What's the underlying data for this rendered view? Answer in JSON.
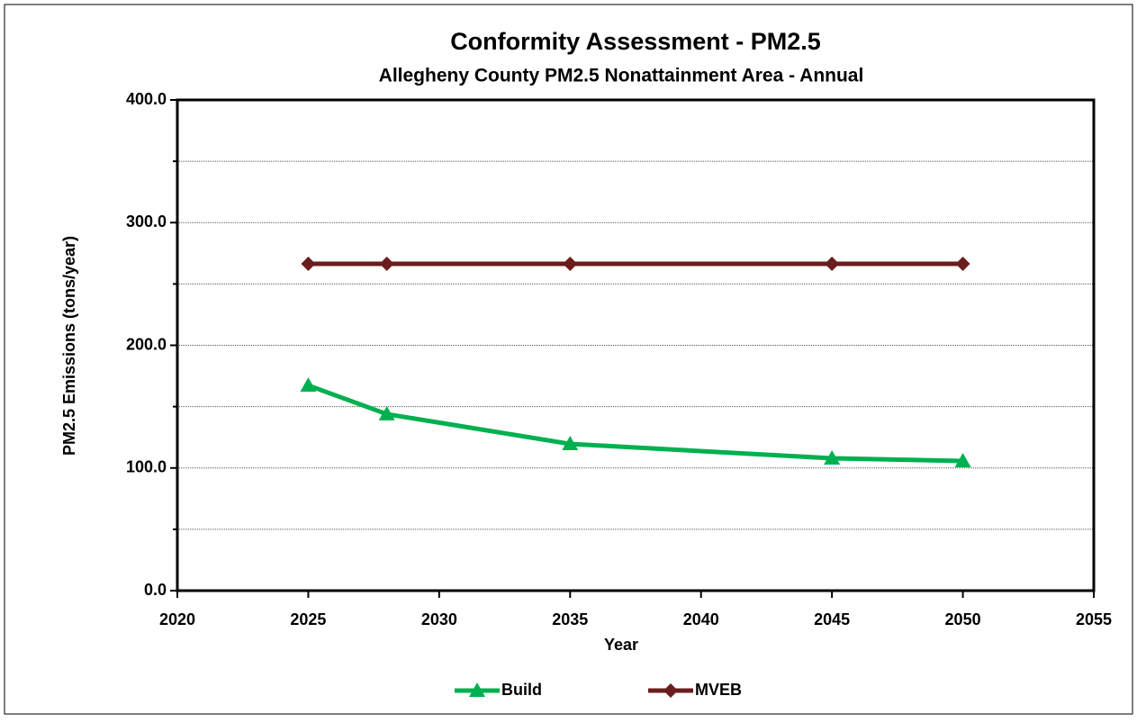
{
  "chart_data": {
    "type": "line",
    "title": "Conformity Assessment - PM2.5",
    "subtitle": "Allegheny County PM2.5 Nonattainment Area - Annual",
    "x_label": "Year",
    "y_label": "PM2.5 Emissions (tons/year)",
    "x": [
      2025,
      2028,
      2035,
      2045,
      2050
    ],
    "series": [
      {
        "name": "Build",
        "color": "#00b050",
        "marker": "triangle",
        "values": [
          167.3,
          143.9,
          119.6,
          107.9,
          105.7
        ]
      },
      {
        "name": "MVEB",
        "color": "#6b1c1c",
        "marker": "diamond",
        "values": [
          266.4,
          266.4,
          266.4,
          266.4,
          266.4
        ]
      }
    ],
    "xlim": [
      2020,
      2055
    ],
    "xticks": [
      2020,
      2025,
      2030,
      2035,
      2040,
      2045,
      2050,
      2055
    ],
    "ylim": [
      0,
      400
    ],
    "yticks": [
      {
        "value": 0,
        "label": "0.0"
      },
      {
        "value": 100,
        "label": "100.0"
      },
      {
        "value": 200,
        "label": "200.0"
      },
      {
        "value": 300,
        "label": "300.0"
      },
      {
        "value": 400,
        "label": "400.0"
      }
    ],
    "minor_yticks": [
      50,
      150,
      250,
      350
    ],
    "grid": true,
    "legend": "bottom"
  }
}
